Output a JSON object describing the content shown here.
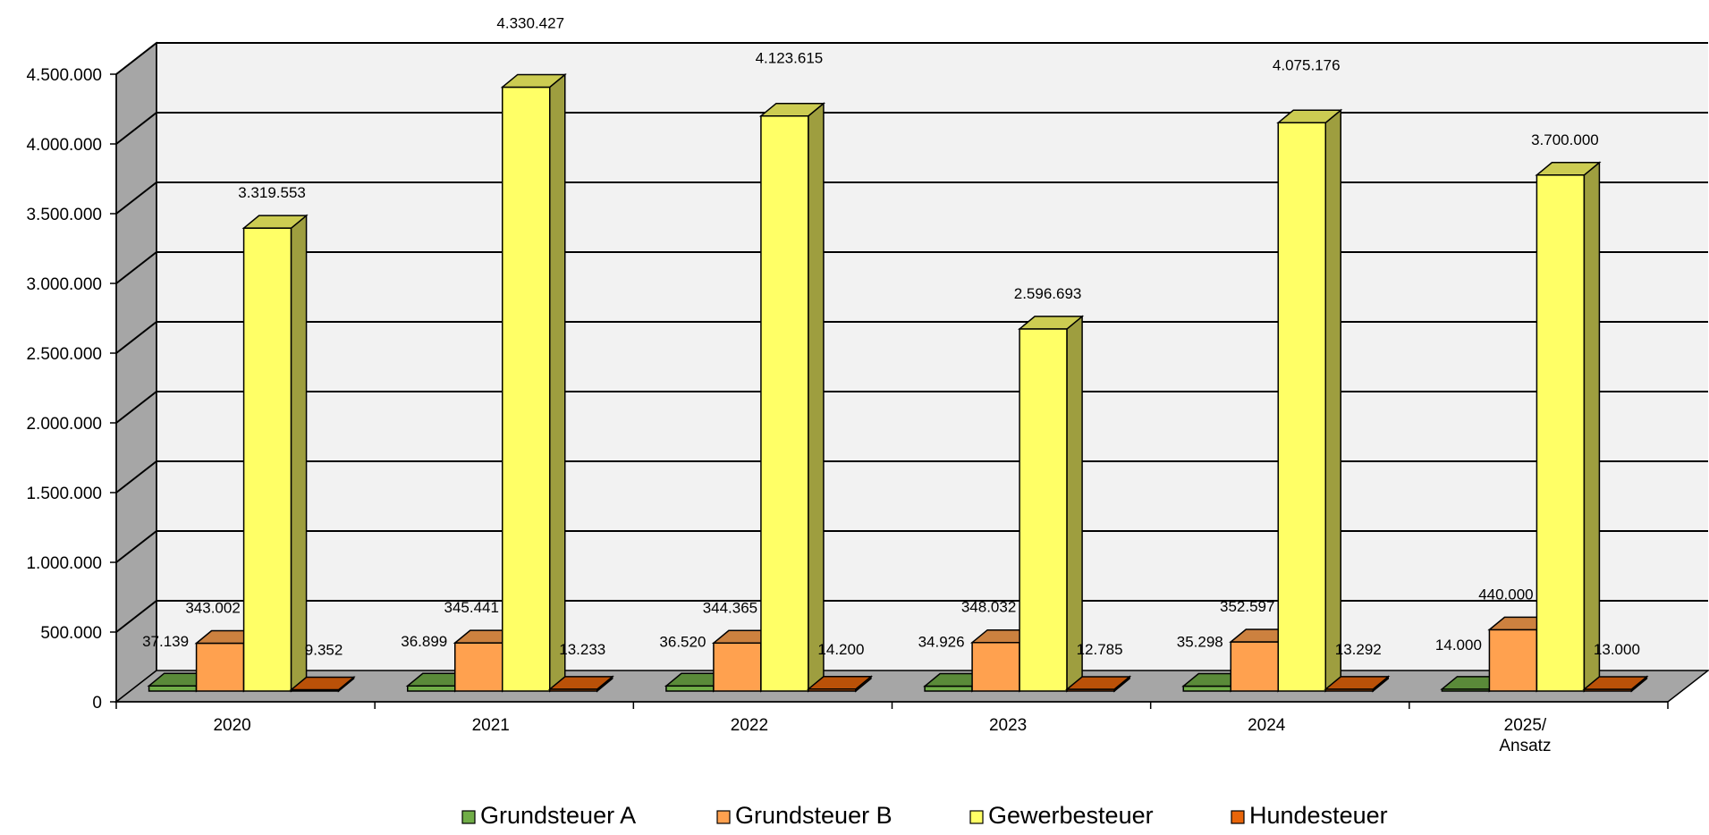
{
  "chart_data": {
    "type": "bar",
    "title": "",
    "xlabel": "",
    "ylabel": "",
    "categories": [
      [
        "2020"
      ],
      [
        "2021"
      ],
      [
        "2022"
      ],
      [
        "2023"
      ],
      [
        "2024"
      ],
      [
        "2025/",
        "Ansatz"
      ]
    ],
    "ylim": [
      0,
      4500000
    ],
    "yticks": [
      0,
      500000,
      1000000,
      1500000,
      2000000,
      2500000,
      3000000,
      3500000,
      4000000,
      4500000
    ],
    "ytick_labels": [
      "0",
      "500.000",
      "1.000.000",
      "1.500.000",
      "2.000.000",
      "2.500.000",
      "3.000.000",
      "3.500.000",
      "4.000.000",
      "4.500.000"
    ],
    "grid": true,
    "legend_position": "bottom",
    "series": [
      {
        "name": "Grundsteuer A",
        "color": "#70ad47",
        "values": [
          37139,
          36899,
          36520,
          34926,
          35298,
          14000
        ],
        "labels": [
          "37.139",
          "36.899",
          "36.520",
          "34.926",
          "35.298",
          "14.000"
        ]
      },
      {
        "name": "Grundsteuer B",
        "color": "#ffa14f",
        "values": [
          343002,
          345441,
          344365,
          348032,
          352597,
          440000
        ],
        "labels": [
          "343.002",
          "345.441",
          "344.365",
          "348.032",
          "352.597",
          "440.000"
        ]
      },
      {
        "name": "Gewerbesteuer",
        "color": "#ffff66",
        "values": [
          3319553,
          4330427,
          4123615,
          2596693,
          4075176,
          3700000
        ],
        "labels": [
          "3.319.553",
          "4.330.427",
          "4.123.615",
          "2.596.693",
          "4.075.176",
          "3.700.000"
        ]
      },
      {
        "name": "Hundesteuer",
        "color": "#e8650a",
        "values": [
          9352,
          13233,
          14200,
          12785,
          13292,
          13000
        ],
        "labels": [
          "9.352",
          "13.233",
          "14.200",
          "12.785",
          "13.292",
          "13.000"
        ]
      }
    ]
  }
}
